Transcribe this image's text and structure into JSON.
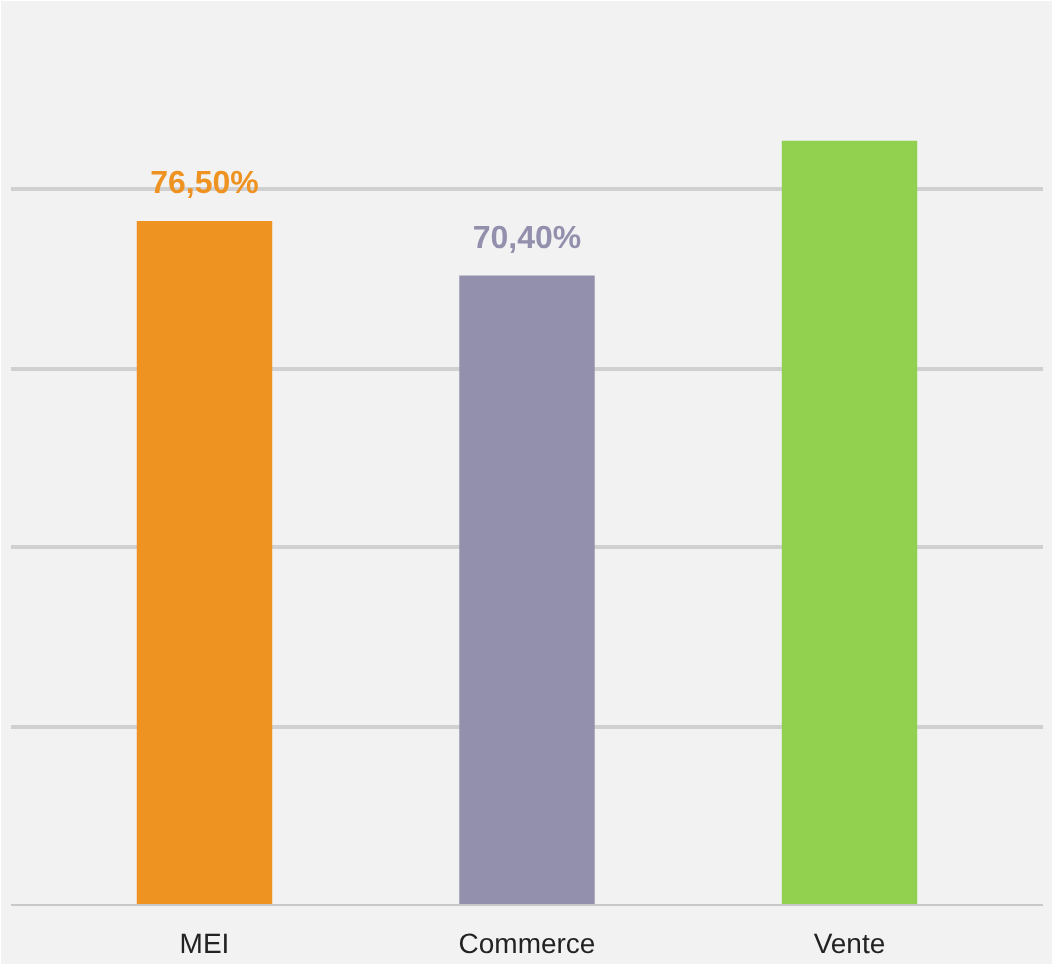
{
  "chart_data": {
    "type": "bar",
    "categories": [
      "MEI",
      "Commerce",
      "Vente"
    ],
    "values": [
      76.5,
      70.4,
      85.5
    ],
    "colors": [
      "#ee9322",
      "#9390ad",
      "#92d050"
    ],
    "value_labels": [
      "76,50%",
      "70,40%",
      null
    ],
    "ylim": [
      0,
      100
    ],
    "yticks": [
      {
        "value": 0,
        "label": null
      },
      {
        "value": 20,
        "label": null
      },
      {
        "value": 40,
        "label": null
      },
      {
        "value": 60,
        "label": null
      },
      {
        "value": 80,
        "label": null
      },
      {
        "value": 100,
        "label": null
      }
    ],
    "grid": "y",
    "tick_labels": "x"
  }
}
